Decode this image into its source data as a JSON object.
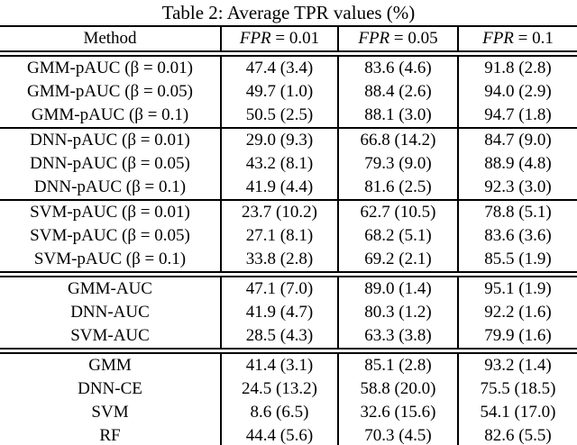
{
  "table": {
    "title": "Table 2: Average TPR values (%)",
    "columns": [
      {
        "label": "Method"
      },
      {
        "math": "FPR",
        "rest": " = 0.01"
      },
      {
        "math": "FPR",
        "rest": " = 0.05"
      },
      {
        "math": "FPR",
        "rest": " = 0.1"
      }
    ],
    "groups": [
      {
        "separator": "single",
        "rows": [
          {
            "method": "GMM-pAUC (β = 0.01)",
            "values": [
              "47.4 (3.4)",
              "83.6 (4.6)",
              "91.8 (2.8)"
            ]
          },
          {
            "method": "GMM-pAUC (β = 0.05)",
            "values": [
              "49.7 (1.0)",
              "88.4 (2.6)",
              "94.0 (2.9)"
            ]
          },
          {
            "method": "GMM-pAUC (β = 0.1)",
            "values": [
              "50.5 (2.5)",
              "88.1 (3.0)",
              "94.7 (1.8)"
            ]
          }
        ]
      },
      {
        "separator": "single",
        "rows": [
          {
            "method": "DNN-pAUC (β = 0.01)",
            "values": [
              "29.0 (9.3)",
              "66.8 (14.2)",
              "84.7 (9.0)"
            ]
          },
          {
            "method": "DNN-pAUC (β = 0.05)",
            "values": [
              "43.2 (8.1)",
              "79.3 (9.0)",
              "88.9 (4.8)"
            ]
          },
          {
            "method": "DNN-pAUC (β = 0.1)",
            "values": [
              "41.9 (4.4)",
              "81.6 (2.5)",
              "92.3 (3.0)"
            ]
          }
        ]
      },
      {
        "separator": "double",
        "rows": [
          {
            "method": "SVM-pAUC (β = 0.01)",
            "values": [
              "23.7 (10.2)",
              "62.7 (10.5)",
              "78.8 (5.1)"
            ]
          },
          {
            "method": "SVM-pAUC (β = 0.05)",
            "values": [
              "27.1 (8.1)",
              "68.2 (5.1)",
              "83.6 (3.6)"
            ]
          },
          {
            "method": "SVM-pAUC (β = 0.1)",
            "values": [
              "33.8 (2.8)",
              "69.2 (2.1)",
              "85.5 (1.9)"
            ]
          }
        ]
      },
      {
        "separator": "double",
        "rows": [
          {
            "method": "GMM-AUC",
            "values": [
              "47.1 (7.0)",
              "89.0 (1.4)",
              "95.1 (1.9)"
            ]
          },
          {
            "method": "DNN-AUC",
            "values": [
              "41.9 (4.7)",
              "80.3 (1.2)",
              "92.2 (1.6)"
            ]
          },
          {
            "method": "SVM-AUC",
            "values": [
              "28.5 (4.3)",
              "63.3 (3.8)",
              "79.9 (1.6)"
            ]
          }
        ]
      },
      {
        "separator": "bottom",
        "rows": [
          {
            "method": "GMM",
            "values": [
              "41.4 (3.1)",
              "85.1 (2.8)",
              "93.2 (1.4)"
            ]
          },
          {
            "method": "DNN-CE",
            "values": [
              "24.5 (13.2)",
              "58.8 (20.0)",
              "75.5 (18.5)"
            ]
          },
          {
            "method": "SVM",
            "values": [
              "8.6 (6.5)",
              "32.6 (15.6)",
              "54.1 (17.0)"
            ]
          },
          {
            "method": "RF",
            "values": [
              "44.4 (5.6)",
              "70.3 (4.5)",
              "82.6 (5.5)"
            ]
          }
        ]
      }
    ]
  }
}
